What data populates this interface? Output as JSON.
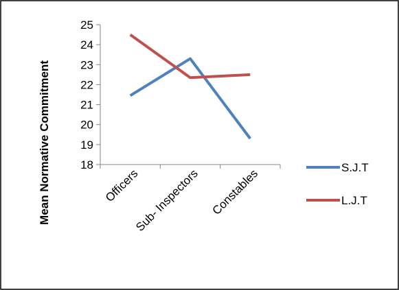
{
  "chart_data": {
    "type": "line",
    "categories": [
      "Officers",
      "Sub- Inspectors",
      "Constables"
    ],
    "series": [
      {
        "name": "S.J.T",
        "values": [
          21.45,
          23.3,
          19.3
        ],
        "color": "#4F81BD"
      },
      {
        "name": "L.J.T",
        "values": [
          24.5,
          22.35,
          22.5
        ],
        "color": "#C0504D"
      }
    ],
    "title": "",
    "xlabel": "",
    "ylabel": "Mean Normative Commitment",
    "ylim": [
      18,
      25
    ],
    "yticks": [
      18,
      19,
      20,
      21,
      22,
      23,
      24,
      25
    ],
    "grid": false,
    "legend_position": "right"
  },
  "colors": {
    "axis": "#868686",
    "border": "#000000",
    "background": "#ffffff"
  }
}
